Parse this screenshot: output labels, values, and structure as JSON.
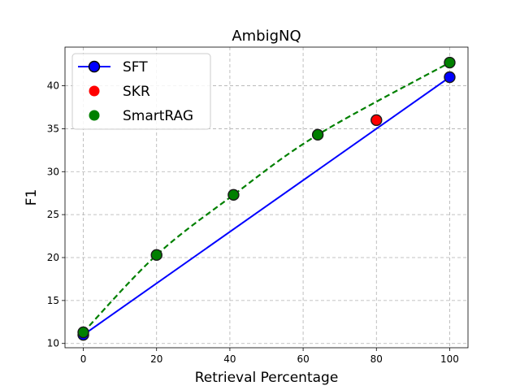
{
  "chart_data": {
    "type": "line",
    "title": "AmbigNQ",
    "xlabel": "Retrieval Percentage",
    "ylabel": "F1",
    "xlim": [
      -5,
      105
    ],
    "ylim": [
      9.5,
      44.5
    ],
    "xticks": [
      0,
      20,
      40,
      60,
      80,
      100
    ],
    "yticks": [
      10,
      15,
      20,
      25,
      30,
      35,
      40
    ],
    "grid": true,
    "legend_position": "top-left",
    "series": [
      {
        "name": "SFT",
        "style": "solid-line-with-endpoint-markers",
        "color": "#0000ff",
        "marker_color": "#0000ff",
        "x": [
          0,
          100
        ],
        "y": [
          11.0,
          41.0
        ]
      },
      {
        "name": "SKR",
        "style": "marker",
        "marker_color": "#ff0000",
        "x": [
          80
        ],
        "y": [
          36.0
        ]
      },
      {
        "name": "SmartRAG",
        "style": "marker-with-dashed-fit",
        "color": "#008000",
        "marker_color": "#008000",
        "x": [
          0,
          20,
          41,
          64,
          100
        ],
        "y": [
          11.3,
          20.3,
          27.3,
          34.3,
          42.7
        ]
      }
    ]
  }
}
